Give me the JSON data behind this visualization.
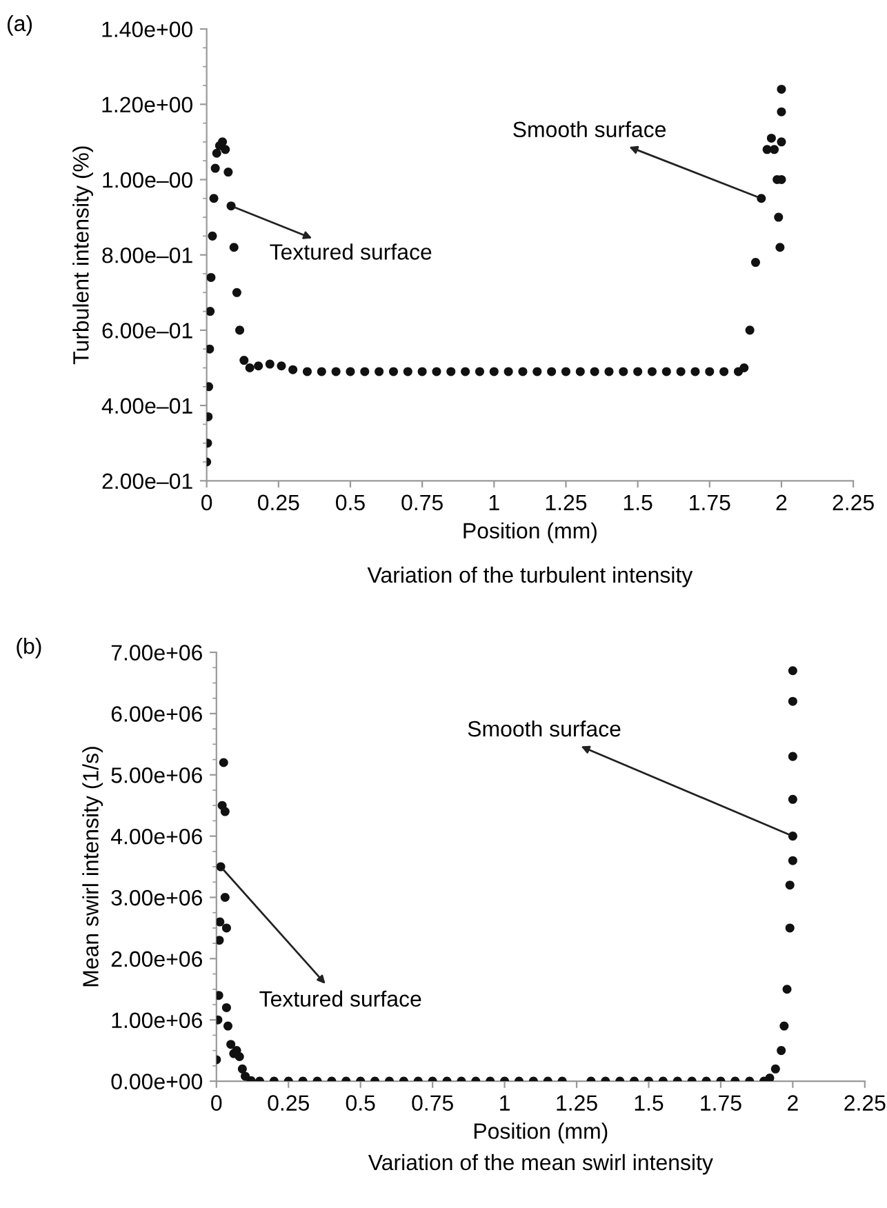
{
  "chart_data": [
    {
      "type": "scatter",
      "title": "(a)",
      "xlabel": "Position (mm)",
      "ylabel": "Turbulent intensity (%)",
      "marker": "circle",
      "grid": false,
      "annotations": [
        {
          "text": "Textured surface",
          "x": 0.085,
          "y": 0.93
        },
        {
          "text": "Smooth surface",
          "x": 1.93,
          "y": 0.95
        },
        "Variation of the turbulent intensity"
      ],
      "xlim": [
        0,
        2.25
      ],
      "xticks": [
        0,
        0.25,
        0.5,
        0.75,
        1,
        1.25,
        1.5,
        1.75,
        2,
        2.25
      ],
      "ylim": [
        0.2,
        1.4
      ],
      "yticks": [
        {
          "value": 0.2,
          "label": "2.00e–01"
        },
        {
          "value": 0.4,
          "label": "4.00e–01"
        },
        {
          "value": 0.6,
          "label": "6.00e–01"
        },
        {
          "value": 0.8,
          "label": "8.00e–01"
        },
        {
          "value": 1.0,
          "label": "1.00e–00"
        },
        {
          "value": 1.2,
          "label": "1.20e+00"
        },
        {
          "value": 1.4,
          "label": "1.40e+00"
        }
      ],
      "series": [
        {
          "color": "#111111",
          "x": [
            0.0,
            0.003,
            0.005,
            0.007,
            0.01,
            0.012,
            0.015,
            0.02,
            0.025,
            0.03,
            0.035,
            0.045,
            0.055,
            0.065,
            0.075,
            0.085,
            0.095,
            0.105,
            0.115,
            0.13,
            0.15,
            0.18,
            0.22,
            0.26,
            0.3,
            0.35,
            0.4,
            0.45,
            0.5,
            0.55,
            0.6,
            0.65,
            0.7,
            0.75,
            0.8,
            0.85,
            0.9,
            0.95,
            1.0,
            1.05,
            1.1,
            1.15,
            1.2,
            1.25,
            1.3,
            1.35,
            1.4,
            1.45,
            1.5,
            1.55,
            1.6,
            1.65,
            1.7,
            1.75,
            1.8,
            1.85,
            1.87,
            1.89,
            1.91,
            1.93,
            1.95,
            1.965,
            1.975,
            1.985,
            1.99,
            1.995,
            2.0,
            2.0,
            2.0,
            2.0
          ],
          "values": [
            0.25,
            0.3,
            0.37,
            0.45,
            0.55,
            0.65,
            0.74,
            0.85,
            0.95,
            1.03,
            1.07,
            1.09,
            1.1,
            1.08,
            1.02,
            0.93,
            0.82,
            0.7,
            0.6,
            0.52,
            0.5,
            0.505,
            0.51,
            0.505,
            0.495,
            0.49,
            0.49,
            0.49,
            0.49,
            0.49,
            0.49,
            0.49,
            0.49,
            0.49,
            0.49,
            0.49,
            0.49,
            0.49,
            0.49,
            0.49,
            0.49,
            0.49,
            0.49,
            0.49,
            0.49,
            0.49,
            0.49,
            0.49,
            0.49,
            0.49,
            0.49,
            0.49,
            0.49,
            0.49,
            0.49,
            0.49,
            0.5,
            0.6,
            0.78,
            0.95,
            1.08,
            1.11,
            1.08,
            1.0,
            0.9,
            0.82,
            1.0,
            1.1,
            1.18,
            1.24
          ]
        }
      ]
    },
    {
      "type": "scatter",
      "title": "(b)",
      "xlabel": "Position (mm)",
      "ylabel": "Mean swirl intensity (1/s)",
      "marker": "circle",
      "grid": false,
      "annotations": [
        {
          "text": "Textured surface",
          "x": 0.015,
          "y": 3500000
        },
        {
          "text": "Smooth surface",
          "x": 2.0,
          "y": 4000000
        },
        "Variation of the mean swirl intensity"
      ],
      "xlim": [
        0,
        2.25
      ],
      "xticks": [
        0,
        0.25,
        0.5,
        0.75,
        1,
        1.25,
        1.5,
        1.75,
        2,
        2.25
      ],
      "ylim": [
        0,
        7000000
      ],
      "yticks": [
        {
          "value": 0,
          "label": "0.00e+00"
        },
        {
          "value": 1000000,
          "label": "1.00e+06"
        },
        {
          "value": 2000000,
          "label": "2.00e+06"
        },
        {
          "value": 3000000,
          "label": "3.00e+06"
        },
        {
          "value": 4000000,
          "label": "4.00e+06"
        },
        {
          "value": 5000000,
          "label": "5.00e+06"
        },
        {
          "value": 6000000,
          "label": "6.00e+06"
        },
        {
          "value": 7000000,
          "label": "7.00e+06"
        }
      ],
      "series": [
        {
          "color": "#111111",
          "x": [
            0.0,
            0.005,
            0.008,
            0.01,
            0.012,
            0.015,
            0.02,
            0.025,
            0.03,
            0.03,
            0.035,
            0.035,
            0.04,
            0.05,
            0.06,
            0.07,
            0.08,
            0.09,
            0.1,
            0.12,
            0.15,
            0.2,
            0.25,
            0.3,
            0.35,
            0.4,
            0.45,
            0.5,
            0.55,
            0.6,
            0.65,
            0.7,
            0.75,
            0.8,
            0.85,
            0.9,
            0.95,
            1.0,
            1.05,
            1.1,
            1.15,
            1.2,
            1.3,
            1.35,
            1.4,
            1.45,
            1.5,
            1.55,
            1.6,
            1.65,
            1.7,
            1.75,
            1.8,
            1.85,
            1.9,
            1.92,
            1.94,
            1.96,
            1.97,
            1.98,
            1.99,
            1.99,
            2.0,
            2.0,
            2.0,
            2.0,
            2.0,
            2.0
          ],
          "values": [
            350000,
            1000000,
            1400000,
            2300000,
            2600000,
            3500000,
            4500000,
            5200000,
            4400000,
            3000000,
            2500000,
            1200000,
            900000,
            600000,
            450000,
            500000,
            400000,
            200000,
            80000,
            10000,
            0,
            0,
            0,
            0,
            0,
            0,
            0,
            0,
            0,
            0,
            0,
            0,
            0,
            0,
            0,
            0,
            0,
            0,
            0,
            0,
            0,
            0,
            0,
            0,
            0,
            0,
            0,
            0,
            0,
            0,
            0,
            0,
            0,
            0,
            0,
            50000,
            200000,
            500000,
            900000,
            1500000,
            2500000,
            3200000,
            3600000,
            4000000,
            4600000,
            5300000,
            6200000,
            6700000
          ]
        }
      ]
    }
  ]
}
